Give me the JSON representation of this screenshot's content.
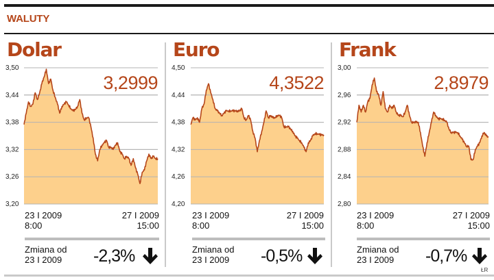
{
  "header": {
    "section_title": "WALUTY"
  },
  "colors": {
    "accent": "#b5461a",
    "line": "#b5461a",
    "fill": "#fdd08c",
    "grid": "#b3b3b3",
    "divider": "#c9c9c9"
  },
  "panels": [
    {
      "title": "Dolar",
      "last_value": "3,2999",
      "y_ticks": [
        "3,50",
        "3,44",
        "3,38",
        "3,32",
        "3,26",
        "3,20"
      ],
      "start_date": "23 I 2009",
      "start_time": "8:00",
      "end_date": "27 I 2009",
      "end_time": "15:00",
      "change_label_1": "Zmiana od",
      "change_label_2": "23 I 2009",
      "change_value": "-2,3%",
      "change_icon": "arrow-down-icon"
    },
    {
      "title": "Euro",
      "last_value": "4,3522",
      "y_ticks": [
        "4,50",
        "4,44",
        "4,38",
        "4,32",
        "4,26",
        "4,20"
      ],
      "start_date": "23 I 2009",
      "start_time": "8:00",
      "end_date": "27 I 2009",
      "end_time": "15:00",
      "change_label_1": "Zmiana od",
      "change_label_2": "23 I 2009",
      "change_value": "-0,5%",
      "change_icon": "arrow-down-icon"
    },
    {
      "title": "Frank",
      "last_value": "2,8979",
      "y_ticks": [
        "3,00",
        "2,96",
        "2,92",
        "2,88",
        "2,84",
        "2,80"
      ],
      "start_date": "23 I 2009",
      "start_time": "8:00",
      "end_date": "27 I 2009",
      "end_time": "15:00",
      "change_label_1": "Zmiana od",
      "change_label_2": "23 I 2009",
      "change_value": "-0,7%",
      "change_icon": "arrow-down-icon"
    }
  ],
  "credit": "ŁR",
  "chart_data": [
    {
      "type": "area",
      "title": "Dolar",
      "xlabel": "23 I 2009 8:00 – 27 I 2009 15:00",
      "ylabel": "",
      "ylim": [
        3.2,
        3.5
      ],
      "yticks": [
        3.5,
        3.44,
        3.38,
        3.32,
        3.26,
        3.2
      ],
      "grid": true,
      "annotation": "3,2999",
      "x": [
        0,
        1,
        2,
        3,
        4,
        5,
        6,
        7,
        8,
        9,
        10,
        11,
        12,
        13,
        14,
        15,
        16,
        17,
        18,
        19,
        20,
        21,
        22,
        23,
        24,
        25,
        26,
        27,
        28,
        29,
        30,
        31,
        32,
        33,
        34,
        35,
        36,
        37,
        38,
        39,
        40,
        41,
        42,
        43,
        44,
        45,
        46,
        47,
        48,
        49,
        50,
        51,
        52,
        53,
        54,
        55,
        56,
        57,
        58,
        59,
        60
      ],
      "values": [
        3.375,
        3.4,
        3.425,
        3.415,
        3.42,
        3.445,
        3.43,
        3.445,
        3.465,
        3.48,
        3.497,
        3.465,
        3.475,
        3.45,
        3.435,
        3.42,
        3.4,
        3.415,
        3.42,
        3.425,
        3.418,
        3.41,
        3.405,
        3.408,
        3.415,
        3.43,
        3.4,
        3.385,
        3.39,
        3.39,
        3.37,
        3.345,
        3.31,
        3.295,
        3.32,
        3.33,
        3.335,
        3.34,
        3.325,
        3.325,
        3.32,
        3.33,
        3.335,
        3.315,
        3.31,
        3.3,
        3.305,
        3.3,
        3.285,
        3.3,
        3.28,
        3.265,
        3.245,
        3.27,
        3.275,
        3.295,
        3.31,
        3.3,
        3.305,
        3.3,
        3.2999
      ]
    },
    {
      "type": "area",
      "title": "Euro",
      "xlabel": "23 I 2009 8:00 – 27 I 2009 15:00",
      "ylabel": "",
      "ylim": [
        4.2,
        4.5
      ],
      "yticks": [
        4.5,
        4.44,
        4.38,
        4.32,
        4.26,
        4.2
      ],
      "grid": true,
      "annotation": "4,3522",
      "x": [
        0,
        1,
        2,
        3,
        4,
        5,
        6,
        7,
        8,
        9,
        10,
        11,
        12,
        13,
        14,
        15,
        16,
        17,
        18,
        19,
        20,
        21,
        22,
        23,
        24,
        25,
        26,
        27,
        28,
        29,
        30,
        31,
        32,
        33,
        34,
        35,
        36,
        37,
        38,
        39,
        40,
        41,
        42,
        43,
        44,
        45,
        46,
        47,
        48,
        49,
        50,
        51,
        52,
        53,
        54,
        55,
        56,
        57,
        58,
        59,
        60
      ],
      "values": [
        4.375,
        4.39,
        4.385,
        4.39,
        4.38,
        4.41,
        4.42,
        4.45,
        4.465,
        4.445,
        4.43,
        4.41,
        4.405,
        4.4,
        4.395,
        4.4,
        4.405,
        4.405,
        4.405,
        4.405,
        4.405,
        4.405,
        4.405,
        4.41,
        4.39,
        4.385,
        4.395,
        4.385,
        4.36,
        4.345,
        4.315,
        4.34,
        4.36,
        4.38,
        4.405,
        4.39,
        4.395,
        4.39,
        4.39,
        4.395,
        4.395,
        4.39,
        4.37,
        4.37,
        4.37,
        4.365,
        4.36,
        4.35,
        4.345,
        4.34,
        4.335,
        4.325,
        4.315,
        4.335,
        4.34,
        4.35,
        4.355,
        4.355,
        4.353,
        4.352,
        4.3522
      ]
    },
    {
      "type": "area",
      "title": "Frank",
      "xlabel": "23 I 2009 8:00 – 27 I 2009 15:00",
      "ylabel": "",
      "ylim": [
        2.8,
        3.0
      ],
      "yticks": [
        3.0,
        2.96,
        2.92,
        2.88,
        2.84,
        2.8
      ],
      "grid": true,
      "annotation": "2,8979",
      "x": [
        0,
        1,
        2,
        3,
        4,
        5,
        6,
        7,
        8,
        9,
        10,
        11,
        12,
        13,
        14,
        15,
        16,
        17,
        18,
        19,
        20,
        21,
        22,
        23,
        24,
        25,
        26,
        27,
        28,
        29,
        30,
        31,
        32,
        33,
        34,
        35,
        36,
        37,
        38,
        39,
        40,
        41,
        42,
        43,
        44,
        45,
        46,
        47,
        48,
        49,
        50,
        51,
        52,
        53,
        54,
        55,
        56,
        57,
        58,
        59,
        60
      ],
      "values": [
        2.92,
        2.945,
        2.935,
        2.945,
        2.935,
        2.95,
        2.955,
        2.975,
        2.985,
        2.965,
        2.96,
        2.945,
        2.965,
        2.94,
        2.935,
        2.945,
        2.94,
        2.945,
        2.935,
        2.93,
        2.93,
        2.928,
        2.935,
        2.945,
        2.93,
        2.92,
        2.92,
        2.92,
        2.92,
        2.905,
        2.885,
        2.87,
        2.89,
        2.905,
        2.92,
        2.935,
        2.93,
        2.925,
        2.925,
        2.925,
        2.923,
        2.92,
        2.91,
        2.905,
        2.905,
        2.905,
        2.905,
        2.9,
        2.895,
        2.89,
        2.885,
        2.885,
        2.865,
        2.865,
        2.88,
        2.885,
        2.89,
        2.9,
        2.905,
        2.9,
        2.8979
      ]
    }
  ]
}
